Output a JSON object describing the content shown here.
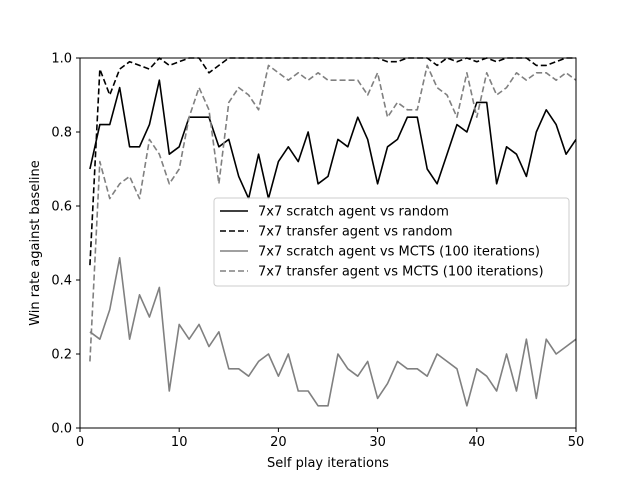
{
  "chart_data": {
    "type": "line",
    "title": "",
    "xlabel": "Self play iterations",
    "ylabel": "Win rate against baseline",
    "xlim": [
      0,
      50
    ],
    "ylim": [
      0.0,
      1.0
    ],
    "xticks": [
      0,
      10,
      20,
      30,
      40,
      50
    ],
    "yticks": [
      0.0,
      0.2,
      0.4,
      0.6,
      0.8,
      1.0
    ],
    "xtick_labels": [
      "0",
      "10",
      "20",
      "30",
      "40",
      "50"
    ],
    "ytick_labels": [
      "0.0",
      "0.2",
      "0.4",
      "0.6",
      "0.8",
      "1.0"
    ],
    "grid": false,
    "legend_position": "center-right",
    "x": [
      1,
      2,
      3,
      4,
      5,
      6,
      7,
      8,
      9,
      10,
      11,
      12,
      13,
      14,
      15,
      16,
      17,
      18,
      19,
      20,
      21,
      22,
      23,
      24,
      25,
      26,
      27,
      28,
      29,
      30,
      31,
      32,
      33,
      34,
      35,
      36,
      37,
      38,
      39,
      40,
      41,
      42,
      43,
      44,
      45,
      46,
      47,
      48,
      49,
      50
    ],
    "series": [
      {
        "name": "7x7 scratch agent vs random",
        "color": "#000000",
        "dash": "solid",
        "values": [
          0.7,
          0.82,
          0.82,
          0.92,
          0.76,
          0.76,
          0.82,
          0.94,
          0.74,
          0.76,
          0.84,
          0.84,
          0.84,
          0.76,
          0.78,
          0.68,
          0.62,
          0.74,
          0.62,
          0.72,
          0.76,
          0.72,
          0.8,
          0.66,
          0.68,
          0.78,
          0.76,
          0.84,
          0.78,
          0.66,
          0.76,
          0.78,
          0.84,
          0.84,
          0.7,
          0.66,
          0.74,
          0.82,
          0.8,
          0.88,
          0.88,
          0.66,
          0.76,
          0.74,
          0.68,
          0.8,
          0.86,
          0.82,
          0.74,
          0.78
        ]
      },
      {
        "name": "7x7 transfer agent vs random",
        "color": "#000000",
        "dash": "dashed",
        "values": [
          0.44,
          0.97,
          0.9,
          0.97,
          0.99,
          0.98,
          0.97,
          1.0,
          0.98,
          0.99,
          1.0,
          1.0,
          0.96,
          0.98,
          1.0,
          1.0,
          1.0,
          1.0,
          1.0,
          1.0,
          1.0,
          1.0,
          1.0,
          1.0,
          1.0,
          1.0,
          1.0,
          1.0,
          1.0,
          1.0,
          0.99,
          0.99,
          1.0,
          1.0,
          1.0,
          0.98,
          1.0,
          0.99,
          1.0,
          0.99,
          1.0,
          0.99,
          1.0,
          1.0,
          1.0,
          0.98,
          0.98,
          0.99,
          1.0,
          1.0
        ]
      },
      {
        "name": "7x7 scratch agent vs MCTS (100 iterations)",
        "color": "#808080",
        "dash": "solid",
        "values": [
          0.26,
          0.24,
          0.32,
          0.46,
          0.24,
          0.36,
          0.3,
          0.38,
          0.1,
          0.28,
          0.24,
          0.28,
          0.22,
          0.26,
          0.16,
          0.16,
          0.14,
          0.18,
          0.2,
          0.14,
          0.2,
          0.1,
          0.1,
          0.06,
          0.06,
          0.2,
          0.16,
          0.14,
          0.18,
          0.08,
          0.12,
          0.18,
          0.16,
          0.16,
          0.14,
          0.2,
          0.18,
          0.16,
          0.06,
          0.16,
          0.14,
          0.1,
          0.2,
          0.1,
          0.24,
          0.08,
          0.24,
          0.2,
          0.22,
          0.24
        ]
      },
      {
        "name": "7x7 transfer agent vs MCTS (100 iterations)",
        "color": "#808080",
        "dash": "dashed",
        "values": [
          0.18,
          0.72,
          0.62,
          0.66,
          0.68,
          0.62,
          0.78,
          0.74,
          0.66,
          0.7,
          0.84,
          0.92,
          0.86,
          0.66,
          0.88,
          0.92,
          0.9,
          0.86,
          0.98,
          0.96,
          0.94,
          0.96,
          0.94,
          0.96,
          0.94,
          0.94,
          0.94,
          0.94,
          0.9,
          0.96,
          0.84,
          0.88,
          0.86,
          0.86,
          0.98,
          0.92,
          0.9,
          0.84,
          0.96,
          0.84,
          0.96,
          0.9,
          0.92,
          0.96,
          0.94,
          0.96,
          0.96,
          0.94,
          0.96,
          0.94
        ]
      }
    ]
  }
}
